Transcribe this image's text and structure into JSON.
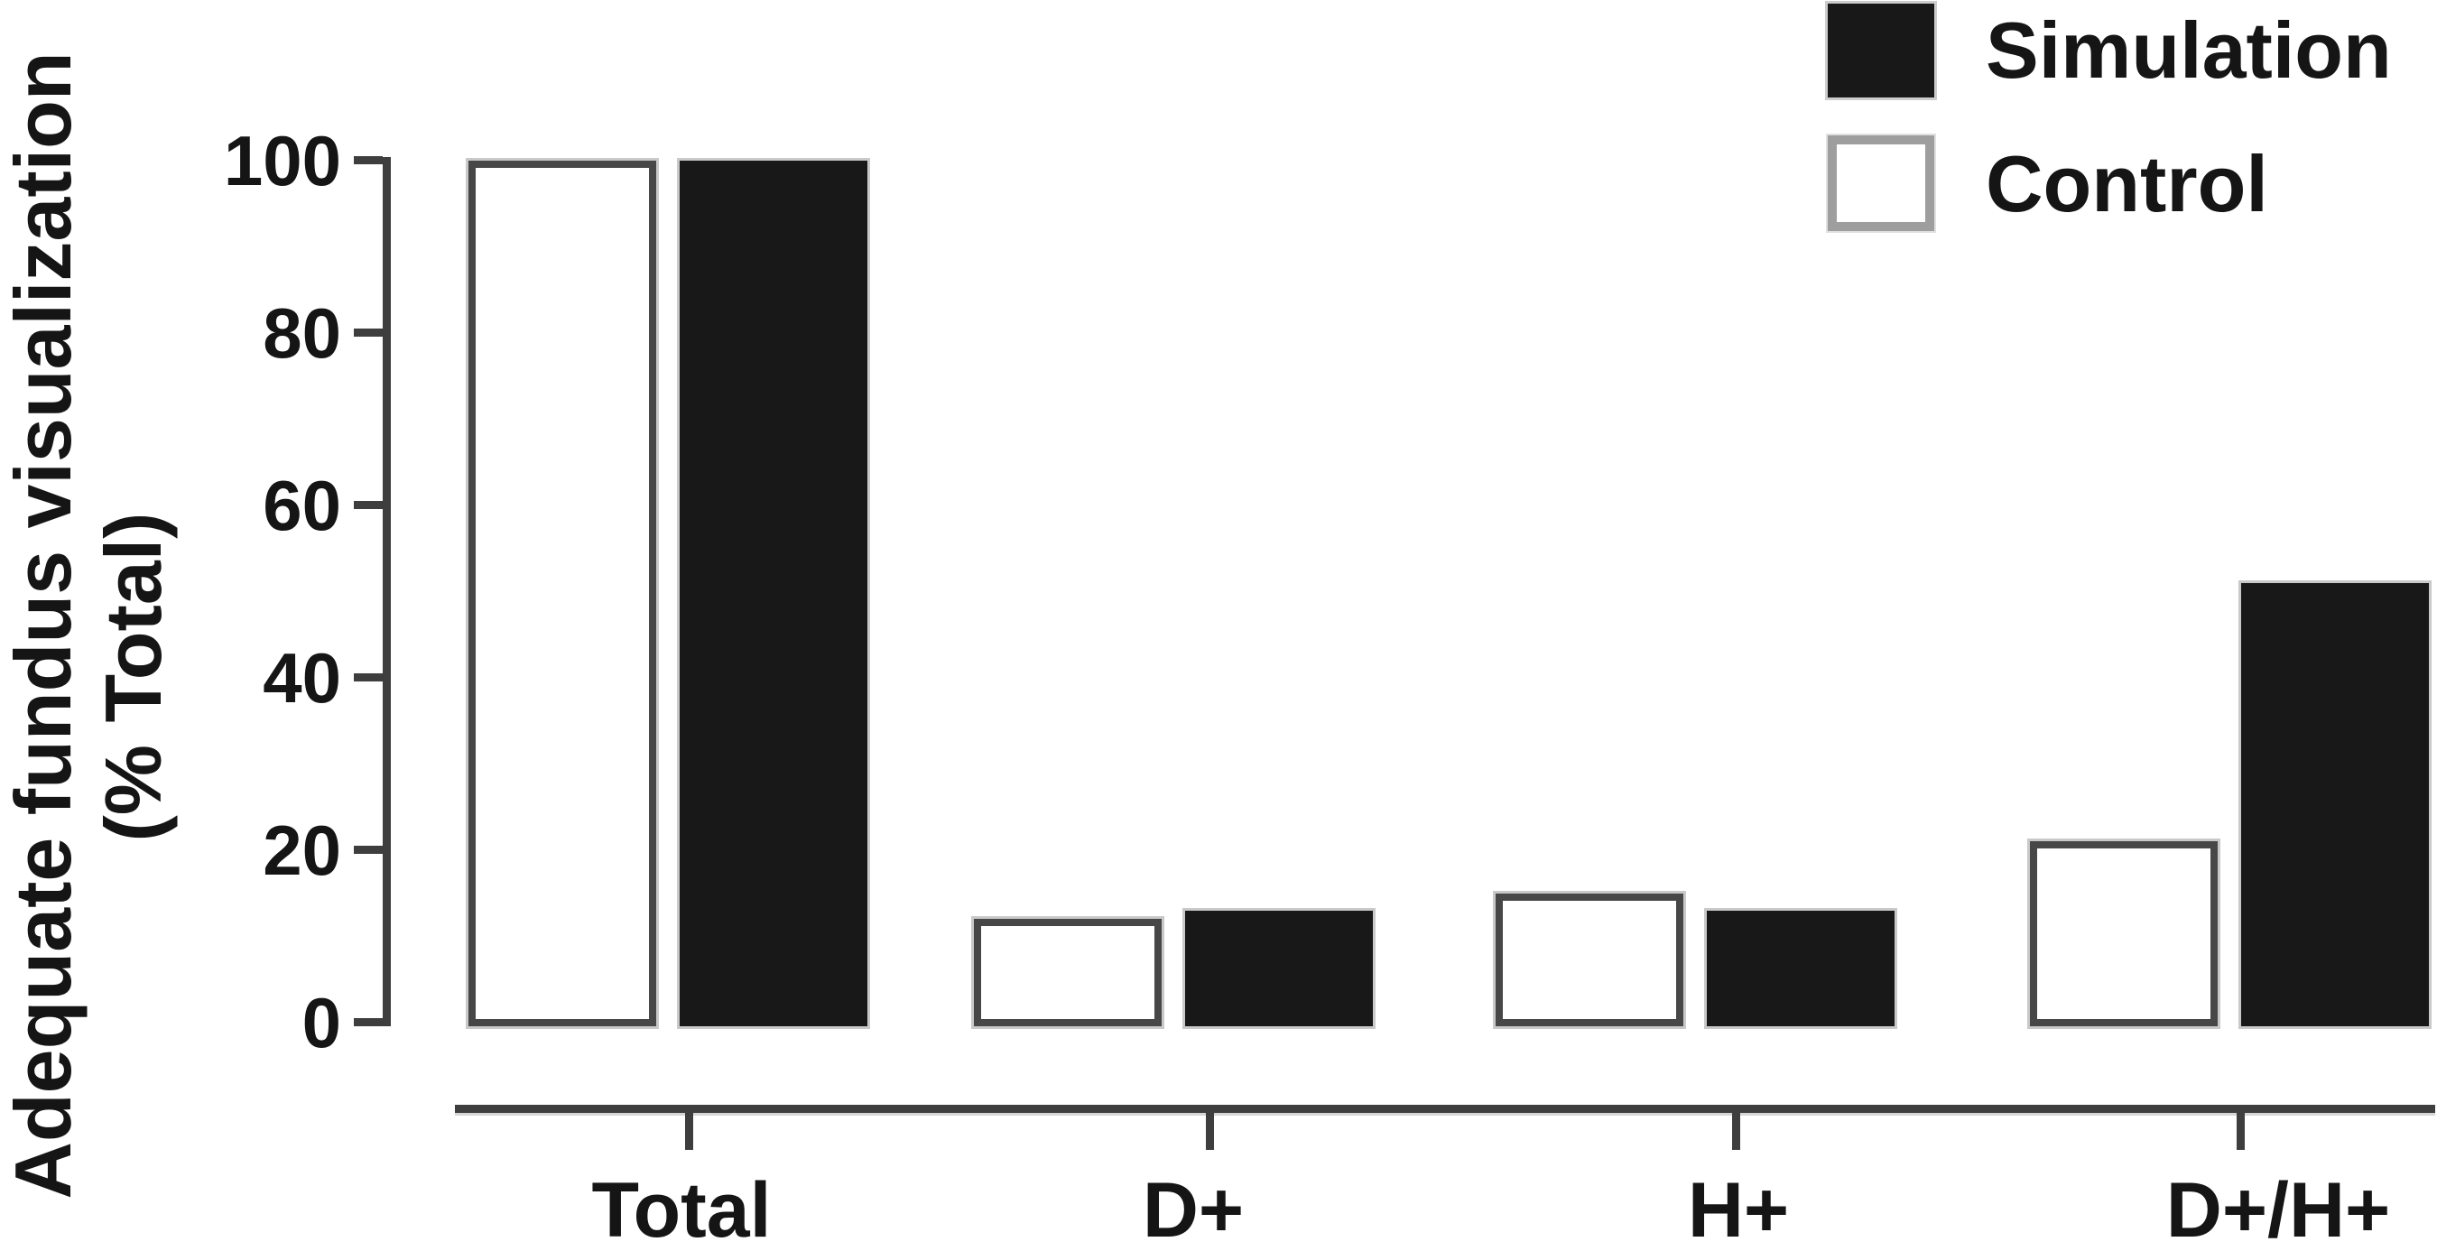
{
  "figure_background": "#ffffff",
  "colors": {
    "simulation_fill": "#181818",
    "control_fill": "#ffffff",
    "control_border": "#474747",
    "axis": "#3e3e3e",
    "text": "#151515"
  },
  "y_axis": {
    "label_line1": "Adequate fundus visualization",
    "label_line2": "(% Total)",
    "tick_values": [
      100,
      80,
      60,
      40,
      20,
      0
    ]
  },
  "x_axis": {
    "categories": [
      "Total",
      "D+",
      "H+",
      "D+/H+"
    ]
  },
  "legend": [
    {
      "name": "Simulation",
      "swatch_color": "#181818"
    },
    {
      "name": "Control",
      "swatch_color": "#ffffff"
    }
  ],
  "chart_data": {
    "type": "bar",
    "categories": [
      "Total",
      "D+",
      "H+",
      "D+/H+"
    ],
    "series": [
      {
        "name": "Control",
        "color": "#ffffff",
        "values": [
          100,
          12,
          15,
          21
        ]
      },
      {
        "name": "Simulation",
        "color": "#181818",
        "values": [
          100,
          13,
          13,
          51
        ]
      }
    ],
    "title": "",
    "xlabel": "",
    "ylabel": "Adequate fundus visualization (% Total)",
    "ylim": [
      0,
      100
    ],
    "yticks": [
      100,
      80,
      60,
      40,
      20,
      0
    ],
    "grid": false,
    "legend_position": "top-right",
    "bar_order_in_group": [
      "Control",
      "Simulation"
    ],
    "group_axis_offset": "x-axis drawn below bar baseline with one tick per category"
  }
}
